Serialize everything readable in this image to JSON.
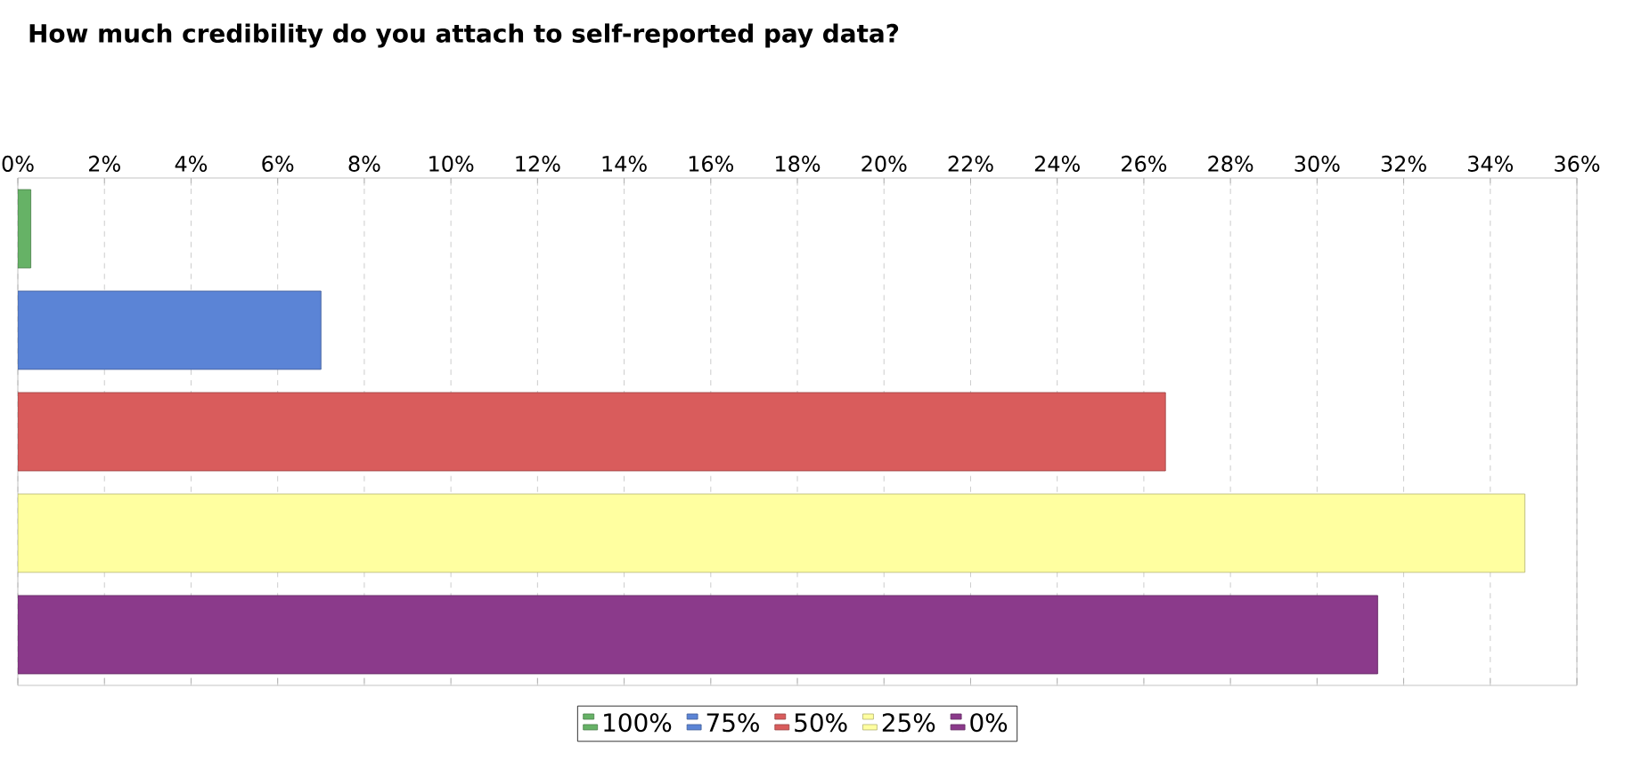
{
  "chart_data": {
    "type": "bar",
    "orientation": "horizontal",
    "title": "How much credibility do you attach to self-reported pay data?",
    "categories": [
      null,
      null,
      null,
      null,
      null
    ],
    "series": [
      {
        "name": "100%",
        "color": "#66b266",
        "values": [
          0.3,
          null,
          null,
          null,
          null
        ]
      },
      {
        "name": "75%",
        "color": "#5b84d6",
        "values": [
          null,
          7.0,
          null,
          null,
          null
        ]
      },
      {
        "name": "50%",
        "color": "#d95c5c",
        "values": [
          null,
          null,
          26.5,
          null,
          null
        ]
      },
      {
        "name": "25%",
        "color": "#ffffa0",
        "values": [
          null,
          null,
          null,
          34.8,
          null
        ]
      },
      {
        "name": "0%",
        "color": "#8b3a8b",
        "values": [
          null,
          null,
          null,
          null,
          31.4
        ]
      }
    ],
    "xlim": [
      0,
      36
    ],
    "xticks": [
      {
        "value": 0,
        "label": "0%"
      },
      {
        "value": 2,
        "label": "2%"
      },
      {
        "value": 4,
        "label": "4%"
      },
      {
        "value": 6,
        "label": "6%"
      },
      {
        "value": 8,
        "label": "8%"
      },
      {
        "value": 10,
        "label": "10%"
      },
      {
        "value": 12,
        "label": "12%"
      },
      {
        "value": 14,
        "label": "14%"
      },
      {
        "value": 16,
        "label": "16%"
      },
      {
        "value": 18,
        "label": "18%"
      },
      {
        "value": 20,
        "label": "20%"
      },
      {
        "value": 22,
        "label": "22%"
      },
      {
        "value": 24,
        "label": "24%"
      },
      {
        "value": 26,
        "label": "26%"
      },
      {
        "value": 28,
        "label": "28%"
      },
      {
        "value": 30,
        "label": "30%"
      },
      {
        "value": 32,
        "label": "32%"
      },
      {
        "value": 34,
        "label": "34%"
      },
      {
        "value": 36,
        "label": "36%"
      }
    ],
    "grid": "x",
    "legend": "bottom"
  }
}
